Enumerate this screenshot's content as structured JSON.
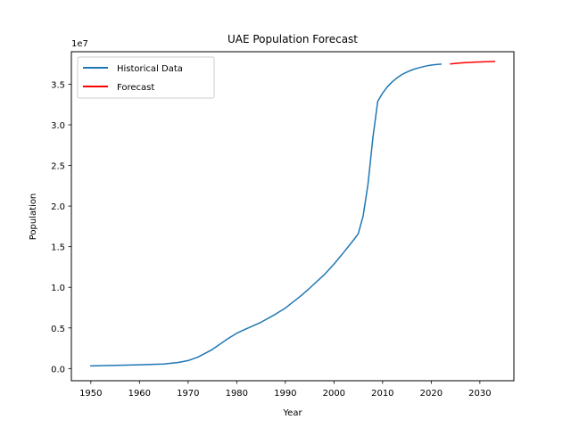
{
  "chart_data": {
    "type": "line",
    "title": "UAE Population Forecast",
    "xlabel": "Year",
    "ylabel": "Population",
    "y_offset_label": "1e7",
    "xlim": [
      1946,
      2037
    ],
    "ylim": [
      -1500000,
      39000000
    ],
    "x_ticks": [
      1950,
      1960,
      1970,
      1980,
      1990,
      2000,
      2010,
      2020,
      2030
    ],
    "y_ticks": [
      0,
      5000000,
      10000000,
      15000000,
      20000000,
      25000000,
      30000000,
      35000000
    ],
    "y_tick_labels": [
      "0.0",
      "0.5",
      "1.0",
      "1.5",
      "2.0",
      "2.5",
      "3.0",
      "3.5"
    ],
    "grid": false,
    "legend_position": "top-left",
    "series": [
      {
        "name": "Historical Data",
        "color": "#1f77b4",
        "x": [
          1950,
          1955,
          1960,
          1965,
          1968,
          1970,
          1972,
          1975,
          1978,
          1980,
          1982,
          1985,
          1988,
          1990,
          1993,
          1995,
          1998,
          2000,
          2002,
          2004,
          2005,
          2006,
          2007,
          2008,
          2009,
          2010,
          2011,
          2012,
          2013,
          2014,
          2015,
          2016,
          2017,
          2018,
          2019,
          2020,
          2021,
          2022
        ],
        "y": [
          330000,
          390000,
          460000,
          560000,
          750000,
          980000,
          1400000,
          2350000,
          3600000,
          4350000,
          4900000,
          5700000,
          6700000,
          7450000,
          8850000,
          9900000,
          11550000,
          12850000,
          14300000,
          15800000,
          16600000,
          18800000,
          22700000,
          28400000,
          32900000,
          33900000,
          34700000,
          35300000,
          35800000,
          36200000,
          36500000,
          36750000,
          36950000,
          37100000,
          37250000,
          37350000,
          37420000,
          37470000
        ]
      },
      {
        "name": "Forecast",
        "color": "#ff0000",
        "x": [
          2024,
          2025,
          2026,
          2027,
          2028,
          2029,
          2030,
          2031,
          2032,
          2033
        ],
        "y": [
          37500000,
          37560000,
          37620000,
          37660000,
          37690000,
          37720000,
          37740000,
          37760000,
          37780000,
          37800000
        ]
      }
    ]
  }
}
